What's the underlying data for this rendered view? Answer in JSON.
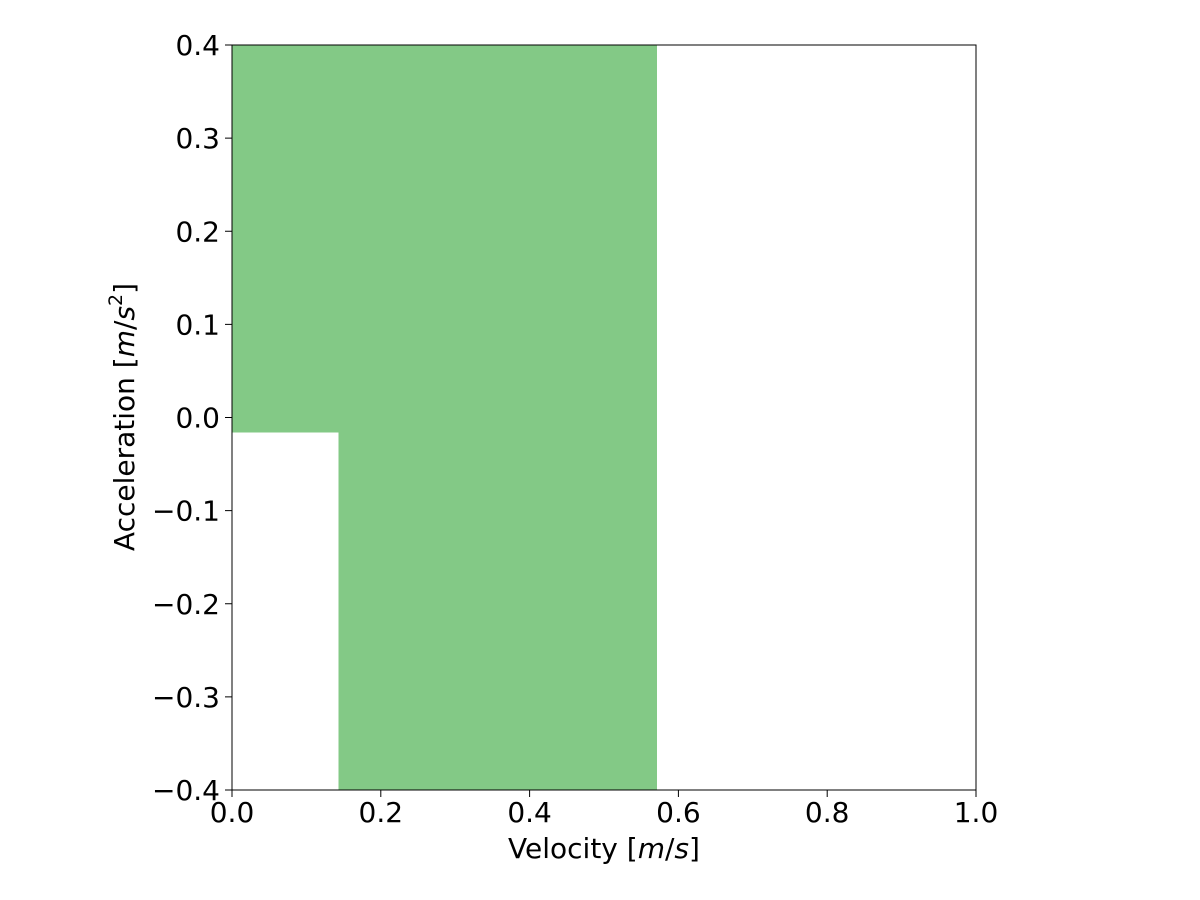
{
  "chart_data": {
    "type": "area",
    "xlabel": "Velocity [m/s]",
    "ylabel": "Acceleration [m/s²]",
    "xlim": [
      0.0,
      1.0
    ],
    "ylim": [
      -0.4,
      0.4
    ],
    "xticks": [
      0.0,
      0.2,
      0.4,
      0.6,
      0.8,
      1.0
    ],
    "xtick_labels": [
      "0.0",
      "0.2",
      "0.4",
      "0.6",
      "0.8",
      "1.0"
    ],
    "yticks": [
      -0.4,
      -0.3,
      -0.2,
      -0.1,
      0.0,
      0.1,
      0.2,
      0.3,
      0.4
    ],
    "ytick_labels": [
      "−0.4",
      "−0.3",
      "−0.2",
      "−0.1",
      "0.0",
      "0.1",
      "0.2",
      "0.3",
      "0.4"
    ],
    "grid": false,
    "fill_color": "#83c986",
    "regions": [
      {
        "x0": 0.0,
        "x1": 0.143,
        "y0": -0.016,
        "y1": 0.4
      },
      {
        "x0": 0.143,
        "x1": 0.571,
        "y0": -0.4,
        "y1": 0.4
      }
    ]
  }
}
